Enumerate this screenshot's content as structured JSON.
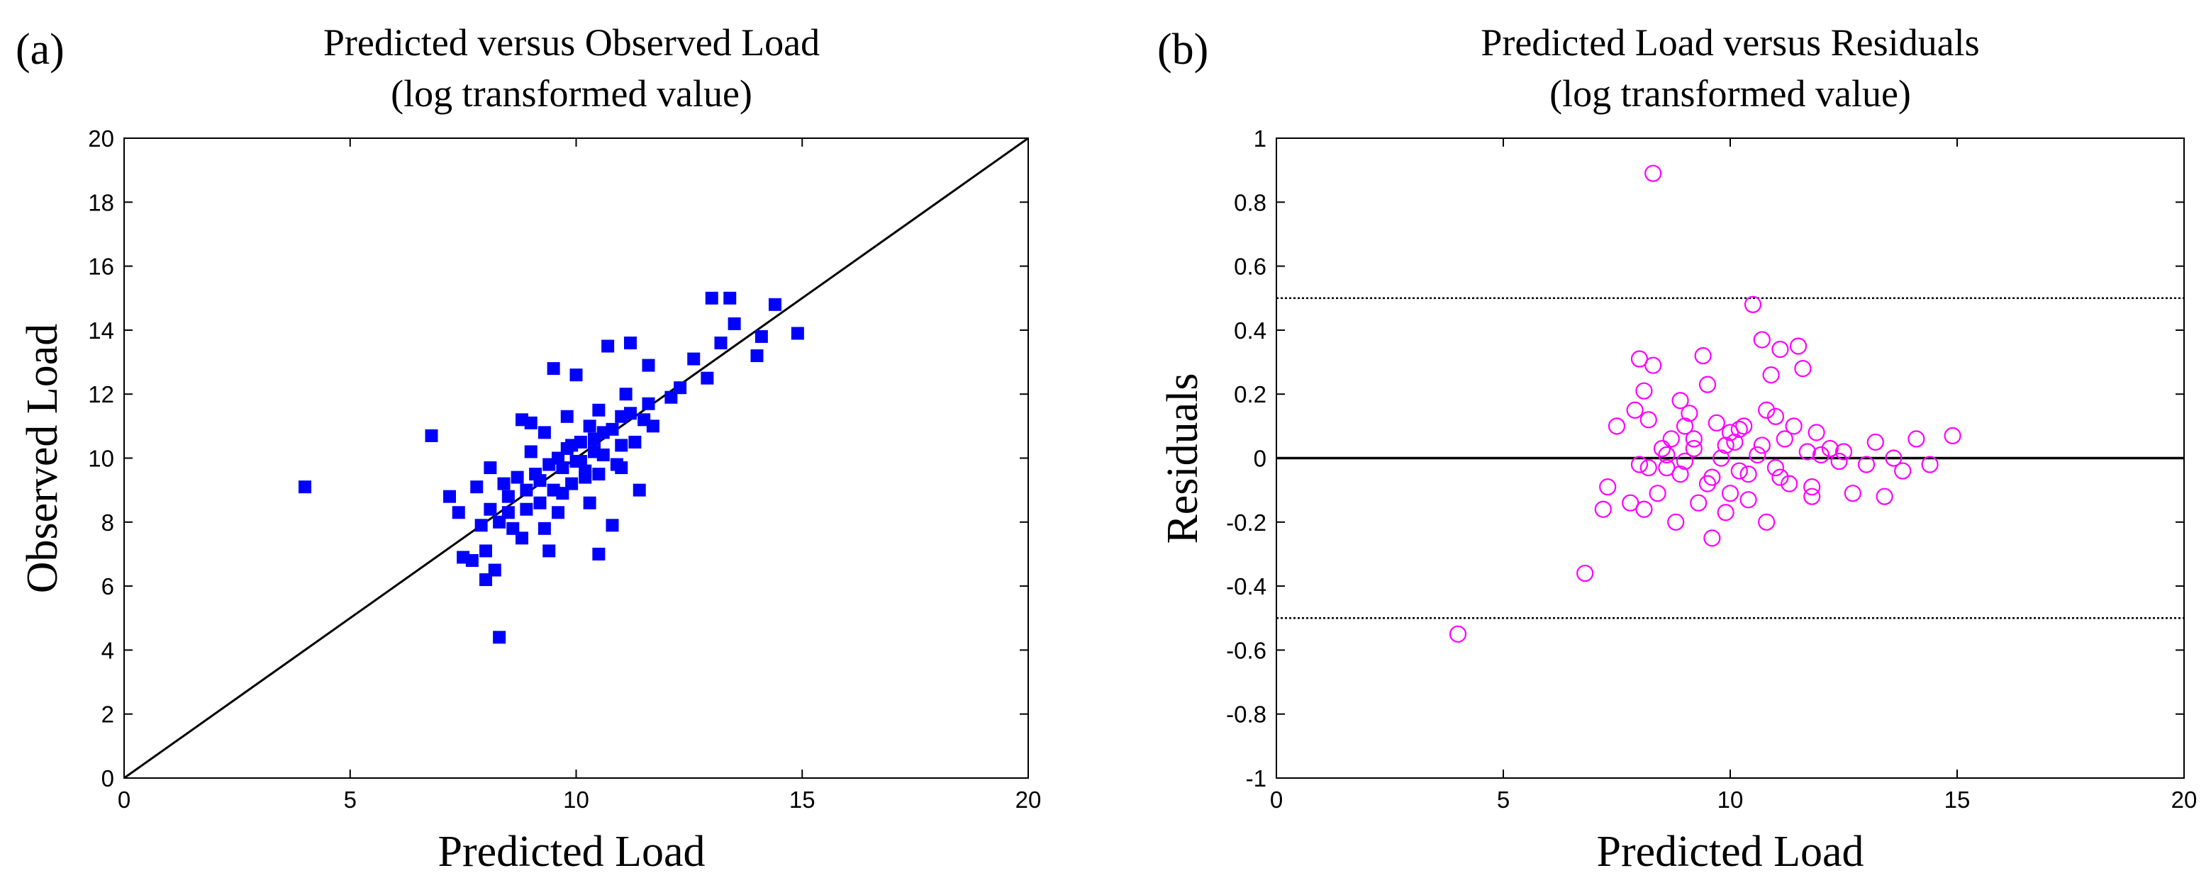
{
  "chart_data": [
    {
      "type": "scatter",
      "panel_label": "(a)",
      "title": "Predicted versus Observed Load",
      "subtitle": "(log transformed value)",
      "xlabel": "Predicted Load",
      "ylabel": "Observed Load",
      "xlim": [
        0,
        20
      ],
      "ylim": [
        0,
        20
      ],
      "xticks": [
        0,
        5,
        10,
        15,
        20
      ],
      "yticks": [
        0,
        2,
        4,
        6,
        8,
        10,
        12,
        14,
        16,
        18,
        20
      ],
      "marker": "square",
      "color": "#0000ff",
      "reference_line": {
        "x": [
          0,
          20
        ],
        "y": [
          0,
          20
        ],
        "color": "#000000"
      },
      "points": [
        [
          4.0,
          9.1
        ],
        [
          6.8,
          10.7
        ],
        [
          7.2,
          8.8
        ],
        [
          7.4,
          8.3
        ],
        [
          7.5,
          6.9
        ],
        [
          7.7,
          6.8
        ],
        [
          7.8,
          9.1
        ],
        [
          7.9,
          7.9
        ],
        [
          8.0,
          6.2
        ],
        [
          8.0,
          7.1
        ],
        [
          8.1,
          8.4
        ],
        [
          8.1,
          9.7
        ],
        [
          8.2,
          6.5
        ],
        [
          8.3,
          4.4
        ],
        [
          8.3,
          8.0
        ],
        [
          8.4,
          9.2
        ],
        [
          8.5,
          8.8
        ],
        [
          8.6,
          7.8
        ],
        [
          8.7,
          9.4
        ],
        [
          8.8,
          7.5
        ],
        [
          8.8,
          11.2
        ],
        [
          8.9,
          8.4
        ],
        [
          9.0,
          10.2
        ],
        [
          9.0,
          11.1
        ],
        [
          9.1,
          9.5
        ],
        [
          9.2,
          8.6
        ],
        [
          9.3,
          7.8
        ],
        [
          9.3,
          10.8
        ],
        [
          9.4,
          7.1
        ],
        [
          9.5,
          9.0
        ],
        [
          9.5,
          12.8
        ],
        [
          9.6,
          8.3
        ],
        [
          9.7,
          9.7
        ],
        [
          9.8,
          10.3
        ],
        [
          9.8,
          11.3
        ],
        [
          9.9,
          9.2
        ],
        [
          10.0,
          9.9
        ],
        [
          10.0,
          12.6
        ],
        [
          10.1,
          10.5
        ],
        [
          10.2,
          9.6
        ],
        [
          10.3,
          8.6
        ],
        [
          10.3,
          11.0
        ],
        [
          10.4,
          10.2
        ],
        [
          10.5,
          7.0
        ],
        [
          10.5,
          9.5
        ],
        [
          10.6,
          10.8
        ],
        [
          10.7,
          13.5
        ],
        [
          10.8,
          7.9
        ],
        [
          10.9,
          9.8
        ],
        [
          11.0,
          10.4
        ],
        [
          11.0,
          11.3
        ],
        [
          11.1,
          12.0
        ],
        [
          11.2,
          13.6
        ],
        [
          11.3,
          10.5
        ],
        [
          11.4,
          9.0
        ],
        [
          11.5,
          11.2
        ],
        [
          11.6,
          12.9
        ],
        [
          11.7,
          11.0
        ],
        [
          12.1,
          11.9
        ],
        [
          12.3,
          12.2
        ],
        [
          12.6,
          13.1
        ],
        [
          12.9,
          12.5
        ],
        [
          13.0,
          15.0
        ],
        [
          13.2,
          13.6
        ],
        [
          13.4,
          15.0
        ],
        [
          13.5,
          14.2
        ],
        [
          14.0,
          13.2
        ],
        [
          14.1,
          13.8
        ],
        [
          14.4,
          14.8
        ],
        [
          14.9,
          13.9
        ],
        [
          8.5,
          8.3
        ],
        [
          8.9,
          9.0
        ],
        [
          9.2,
          9.3
        ],
        [
          9.4,
          9.8
        ],
        [
          9.6,
          10.0
        ],
        [
          9.9,
          10.4
        ],
        [
          10.1,
          9.9
        ],
        [
          10.4,
          10.6
        ],
        [
          10.6,
          10.1
        ],
        [
          10.8,
          10.9
        ],
        [
          11.2,
          11.4
        ],
        [
          11.6,
          11.7
        ],
        [
          9.7,
          8.9
        ],
        [
          10.2,
          9.4
        ],
        [
          10.5,
          11.5
        ],
        [
          11.0,
          9.7
        ]
      ]
    },
    {
      "type": "scatter",
      "panel_label": "(b)",
      "title": "Predicted Load versus Residuals",
      "subtitle": "(log transformed value)",
      "xlabel": "Predicted Load",
      "ylabel": "Residuals",
      "xlim": [
        0,
        20
      ],
      "ylim": [
        -1,
        1
      ],
      "xticks": [
        0,
        5,
        10,
        15,
        20
      ],
      "yticks": [
        -1,
        -0.8,
        -0.6,
        -0.4,
        -0.2,
        0,
        0.2,
        0.4,
        0.6,
        0.8,
        1
      ],
      "marker": "circle",
      "color": "#ff00ff",
      "reference_lines": [
        {
          "y": 0,
          "style": "solid",
          "color": "#000000"
        },
        {
          "y": 0.5,
          "style": "dotted",
          "color": "#000000"
        },
        {
          "y": -0.5,
          "style": "dotted",
          "color": "#000000"
        }
      ],
      "points": [
        [
          4.0,
          -0.55
        ],
        [
          6.8,
          -0.36
        ],
        [
          7.2,
          -0.16
        ],
        [
          7.3,
          -0.09
        ],
        [
          7.5,
          0.1
        ],
        [
          7.8,
          -0.14
        ],
        [
          7.9,
          0.15
        ],
        [
          8.0,
          0.31
        ],
        [
          8.0,
          -0.02
        ],
        [
          8.1,
          0.21
        ],
        [
          8.1,
          -0.16
        ],
        [
          8.2,
          0.12
        ],
        [
          8.3,
          0.89
        ],
        [
          8.3,
          0.29
        ],
        [
          8.4,
          -0.11
        ],
        [
          8.5,
          0.03
        ],
        [
          8.6,
          -0.03
        ],
        [
          8.7,
          0.06
        ],
        [
          8.8,
          -0.2
        ],
        [
          8.9,
          0.18
        ],
        [
          9.0,
          -0.01
        ],
        [
          9.1,
          0.14
        ],
        [
          9.2,
          0.03
        ],
        [
          9.3,
          -0.14
        ],
        [
          9.4,
          0.32
        ],
        [
          9.5,
          0.23
        ],
        [
          9.5,
          -0.08
        ],
        [
          9.6,
          -0.25
        ],
        [
          9.7,
          0.11
        ],
        [
          9.8,
          0.0
        ],
        [
          9.9,
          -0.17
        ],
        [
          10.0,
          0.08
        ],
        [
          10.0,
          -0.11
        ],
        [
          10.1,
          0.05
        ],
        [
          10.2,
          -0.04
        ],
        [
          10.3,
          0.1
        ],
        [
          10.4,
          -0.13
        ],
        [
          10.5,
          0.48
        ],
        [
          10.6,
          0.01
        ],
        [
          10.7,
          0.37
        ],
        [
          10.8,
          -0.2
        ],
        [
          10.9,
          0.26
        ],
        [
          11.0,
          0.13
        ],
        [
          11.0,
          -0.03
        ],
        [
          11.1,
          0.34
        ],
        [
          11.2,
          0.06
        ],
        [
          11.3,
          -0.08
        ],
        [
          11.5,
          0.35
        ],
        [
          11.6,
          0.28
        ],
        [
          11.7,
          0.02
        ],
        [
          11.8,
          -0.09
        ],
        [
          11.9,
          0.08
        ],
        [
          12.2,
          0.03
        ],
        [
          12.5,
          0.02
        ],
        [
          12.7,
          -0.11
        ],
        [
          13.0,
          -0.02
        ],
        [
          13.2,
          0.05
        ],
        [
          13.4,
          -0.12
        ],
        [
          13.6,
          0.0
        ],
        [
          13.8,
          -0.04
        ],
        [
          14.1,
          0.06
        ],
        [
          14.4,
          -0.02
        ],
        [
          14.9,
          0.07
        ],
        [
          8.2,
          -0.03
        ],
        [
          8.6,
          0.01
        ],
        [
          8.9,
          -0.05
        ],
        [
          9.2,
          0.06
        ],
        [
          9.6,
          -0.06
        ],
        [
          9.9,
          0.04
        ],
        [
          10.2,
          0.09
        ],
        [
          10.4,
          -0.05
        ],
        [
          10.7,
          0.04
        ],
        [
          11.1,
          -0.06
        ],
        [
          11.4,
          0.1
        ],
        [
          11.8,
          -0.12
        ],
        [
          12.0,
          0.01
        ],
        [
          9.0,
          0.1
        ],
        [
          10.8,
          0.15
        ],
        [
          12.4,
          -0.01
        ]
      ]
    }
  ]
}
